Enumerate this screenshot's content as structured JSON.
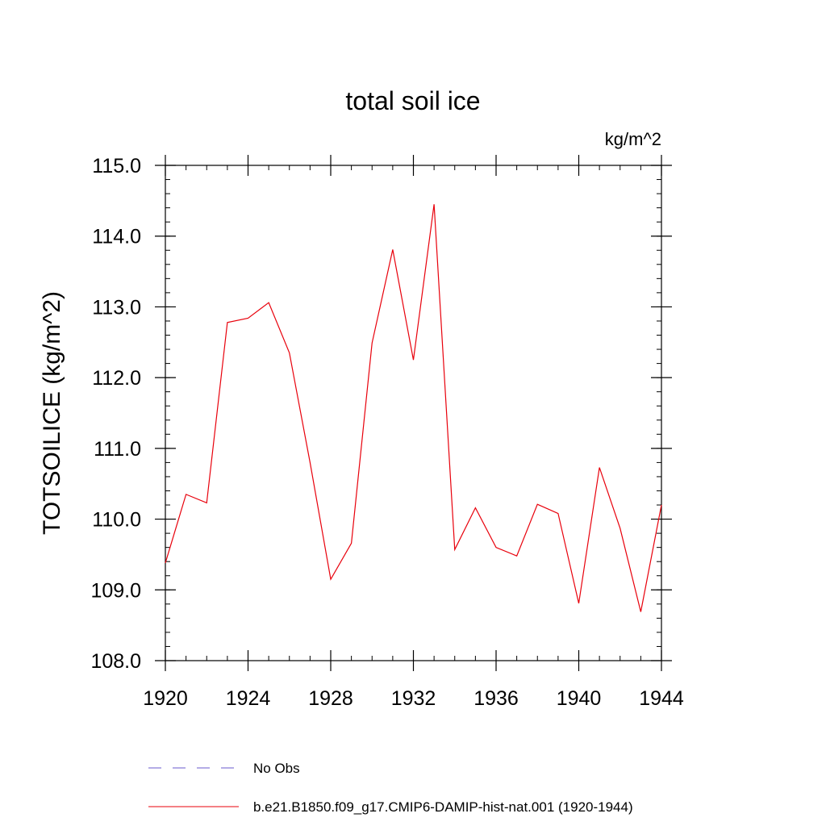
{
  "chart_data": {
    "type": "line",
    "title": "total soil ice",
    "units_label": "kg/m^2",
    "ylabel": "TOTSOILICE  (kg/m^2)",
    "xlabel": "",
    "xlim": [
      1920,
      1944
    ],
    "ylim": [
      108.0,
      115.0
    ],
    "x_ticks": [
      1920,
      1924,
      1928,
      1932,
      1936,
      1940,
      1944
    ],
    "x_tick_labels": [
      "1920",
      "1924",
      "1928",
      "1932",
      "1936",
      "1940",
      "1944"
    ],
    "y_ticks": [
      108,
      109,
      110,
      111,
      112,
      113,
      114,
      115
    ],
    "y_tick_labels": [
      "108.0",
      "109.0",
      "110.0",
      "111.0",
      "112.0",
      "113.0",
      "114.0",
      "115.0"
    ],
    "grid": false,
    "legend_placement": "bottom",
    "series": [
      {
        "name": "b.e21.B1850.f09_g17.CMIP6-DAMIP-hist-nat.001 (1920-1944)",
        "color": "#e8000b",
        "dash": "solid",
        "x": [
          1920,
          1921,
          1922,
          1923,
          1924,
          1925,
          1926,
          1927,
          1928,
          1929,
          1930,
          1931,
          1932,
          1933,
          1934,
          1935,
          1936,
          1937,
          1938,
          1939,
          1940,
          1941,
          1942,
          1943,
          1944
        ],
        "values": [
          109.38,
          110.35,
          110.23,
          112.78,
          112.84,
          113.06,
          112.35,
          110.8,
          109.15,
          109.66,
          112.49,
          113.81,
          112.25,
          114.45,
          109.57,
          110.16,
          109.6,
          109.48,
          110.21,
          110.08,
          108.81,
          110.73,
          109.87,
          108.69,
          110.2
        ]
      }
    ],
    "legend": [
      {
        "label": "No Obs",
        "color": "#6a5acd",
        "dash": "dashed"
      },
      {
        "label": "b.e21.B1850.f09_g17.CMIP6-DAMIP-hist-nat.001 (1920-1944)",
        "color": "#e8000b",
        "dash": "solid"
      }
    ]
  }
}
